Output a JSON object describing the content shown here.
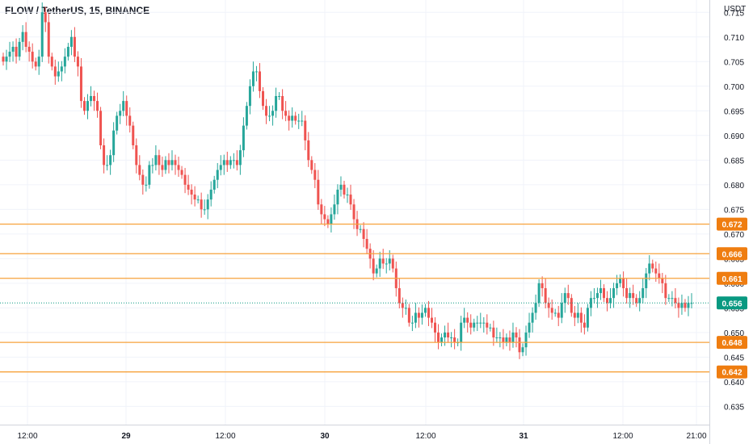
{
  "header": {
    "title": "FLOW / TetherUS, 15, BINANCE"
  },
  "colors": {
    "up": "#26a69a",
    "down": "#ef5350",
    "level": "#f7a23b",
    "badge": "#ef7d10",
    "last": "#089981",
    "grid": "#f0f3fa"
  },
  "chart_data": {
    "type": "candlestick",
    "title": "FLOW / TetherUS, 15, BINANCE",
    "currency": "USDT",
    "y_ticks": [
      "0.635",
      "0.640",
      "0.645",
      "0.650",
      "0.655",
      "0.660",
      "0.665",
      "0.670",
      "0.675",
      "0.680",
      "0.685",
      "0.690",
      "0.695",
      "0.700",
      "0.705",
      "0.710",
      "0.715"
    ],
    "ylim": [
      0.6313,
      0.7175
    ],
    "x_labels": [
      "12:00",
      "29",
      "12:00",
      "30",
      "12:00",
      "31",
      "12:00",
      "21:00"
    ],
    "bold_x_labels": [
      "29",
      "30",
      "31"
    ],
    "levels": [
      {
        "value": 0.672,
        "label": "0.672"
      },
      {
        "value": 0.666,
        "label": "0.666"
      },
      {
        "value": 0.661,
        "label": "0.661"
      },
      {
        "value": 0.648,
        "label": "0.648"
      },
      {
        "value": 0.642,
        "label": "0.642"
      }
    ],
    "last_price": {
      "value": 0.656,
      "label": "0.656"
    },
    "closes": [
      0.705,
      0.706,
      0.707,
      0.708,
      0.706,
      0.709,
      0.711,
      0.708,
      0.707,
      0.705,
      0.704,
      0.706,
      0.715,
      0.713,
      0.706,
      0.704,
      0.702,
      0.703,
      0.704,
      0.706,
      0.708,
      0.71,
      0.706,
      0.704,
      0.697,
      0.695,
      0.697,
      0.698,
      0.697,
      0.695,
      0.688,
      0.684,
      0.684,
      0.686,
      0.691,
      0.694,
      0.695,
      0.697,
      0.694,
      0.692,
      0.688,
      0.684,
      0.682,
      0.68,
      0.68,
      0.684,
      0.684,
      0.686,
      0.684,
      0.683,
      0.685,
      0.684,
      0.685,
      0.684,
      0.683,
      0.682,
      0.68,
      0.679,
      0.678,
      0.677,
      0.677,
      0.675,
      0.675,
      0.677,
      0.679,
      0.681,
      0.683,
      0.684,
      0.685,
      0.684,
      0.685,
      0.685,
      0.684,
      0.687,
      0.692,
      0.696,
      0.7,
      0.703,
      0.703,
      0.699,
      0.696,
      0.694,
      0.694,
      0.695,
      0.698,
      0.698,
      0.695,
      0.694,
      0.693,
      0.694,
      0.693,
      0.693,
      0.693,
      0.689,
      0.685,
      0.683,
      0.681,
      0.676,
      0.674,
      0.673,
      0.672,
      0.674,
      0.676,
      0.679,
      0.68,
      0.678,
      0.678,
      0.676,
      0.673,
      0.671,
      0.671,
      0.669,
      0.667,
      0.665,
      0.662,
      0.663,
      0.665,
      0.664,
      0.664,
      0.665,
      0.663,
      0.659,
      0.656,
      0.655,
      0.655,
      0.652,
      0.652,
      0.654,
      0.653,
      0.654,
      0.655,
      0.653,
      0.652,
      0.65,
      0.648,
      0.649,
      0.65,
      0.649,
      0.649,
      0.648,
      0.648,
      0.652,
      0.653,
      0.652,
      0.651,
      0.652,
      0.652,
      0.652,
      0.652,
      0.651,
      0.651,
      0.649,
      0.649,
      0.649,
      0.648,
      0.649,
      0.648,
      0.65,
      0.649,
      0.646,
      0.647,
      0.65,
      0.652,
      0.654,
      0.656,
      0.66,
      0.659,
      0.656,
      0.655,
      0.654,
      0.654,
      0.653,
      0.656,
      0.658,
      0.657,
      0.654,
      0.653,
      0.654,
      0.652,
      0.651,
      0.655,
      0.657,
      0.657,
      0.658,
      0.659,
      0.657,
      0.656,
      0.657,
      0.659,
      0.66,
      0.661,
      0.659,
      0.657,
      0.658,
      0.657,
      0.656,
      0.657,
      0.659,
      0.662,
      0.664,
      0.663,
      0.662,
      0.661,
      0.66,
      0.657,
      0.657,
      0.657,
      0.656,
      0.655,
      0.656,
      0.655,
      0.656,
      0.656
    ]
  }
}
